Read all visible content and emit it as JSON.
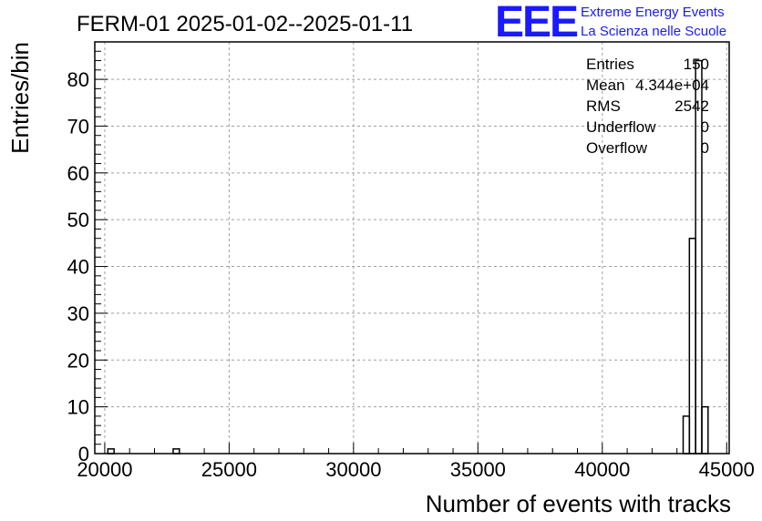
{
  "chart_data": {
    "type": "bar",
    "title": "FERM-01 2025-01-02--2025-01-11",
    "xlabel": "Number of events with tracks",
    "ylabel": "Entries/bin",
    "xlim": [
      19600,
      45100
    ],
    "ylim": [
      0,
      88
    ],
    "xticks": [
      20000,
      25000,
      30000,
      35000,
      40000,
      45000
    ],
    "yticks": [
      0,
      10,
      20,
      30,
      40,
      50,
      60,
      70,
      80
    ],
    "grid": true,
    "bin_width": 250,
    "bins": [
      {
        "x": 20250,
        "y": 1
      },
      {
        "x": 22875,
        "y": 1
      },
      {
        "x": 43375,
        "y": 8
      },
      {
        "x": 43625,
        "y": 46
      },
      {
        "x": 43875,
        "y": 84
      },
      {
        "x": 44125,
        "y": 10
      }
    ],
    "stats": {
      "placement": "top-right",
      "rows": [
        {
          "label": "Entries",
          "value": "150"
        },
        {
          "label": "Mean",
          "value": "4.344e+04"
        },
        {
          "label": "RMS",
          "value": "2542"
        },
        {
          "label": "Underflow",
          "value": "0"
        },
        {
          "label": "Overflow",
          "value": "0"
        }
      ]
    }
  },
  "logo": {
    "mark": "EEE",
    "line1": "Extreme Energy Events",
    "line2": "La Scienza nelle Scuole",
    "color": "#1a1aff"
  }
}
